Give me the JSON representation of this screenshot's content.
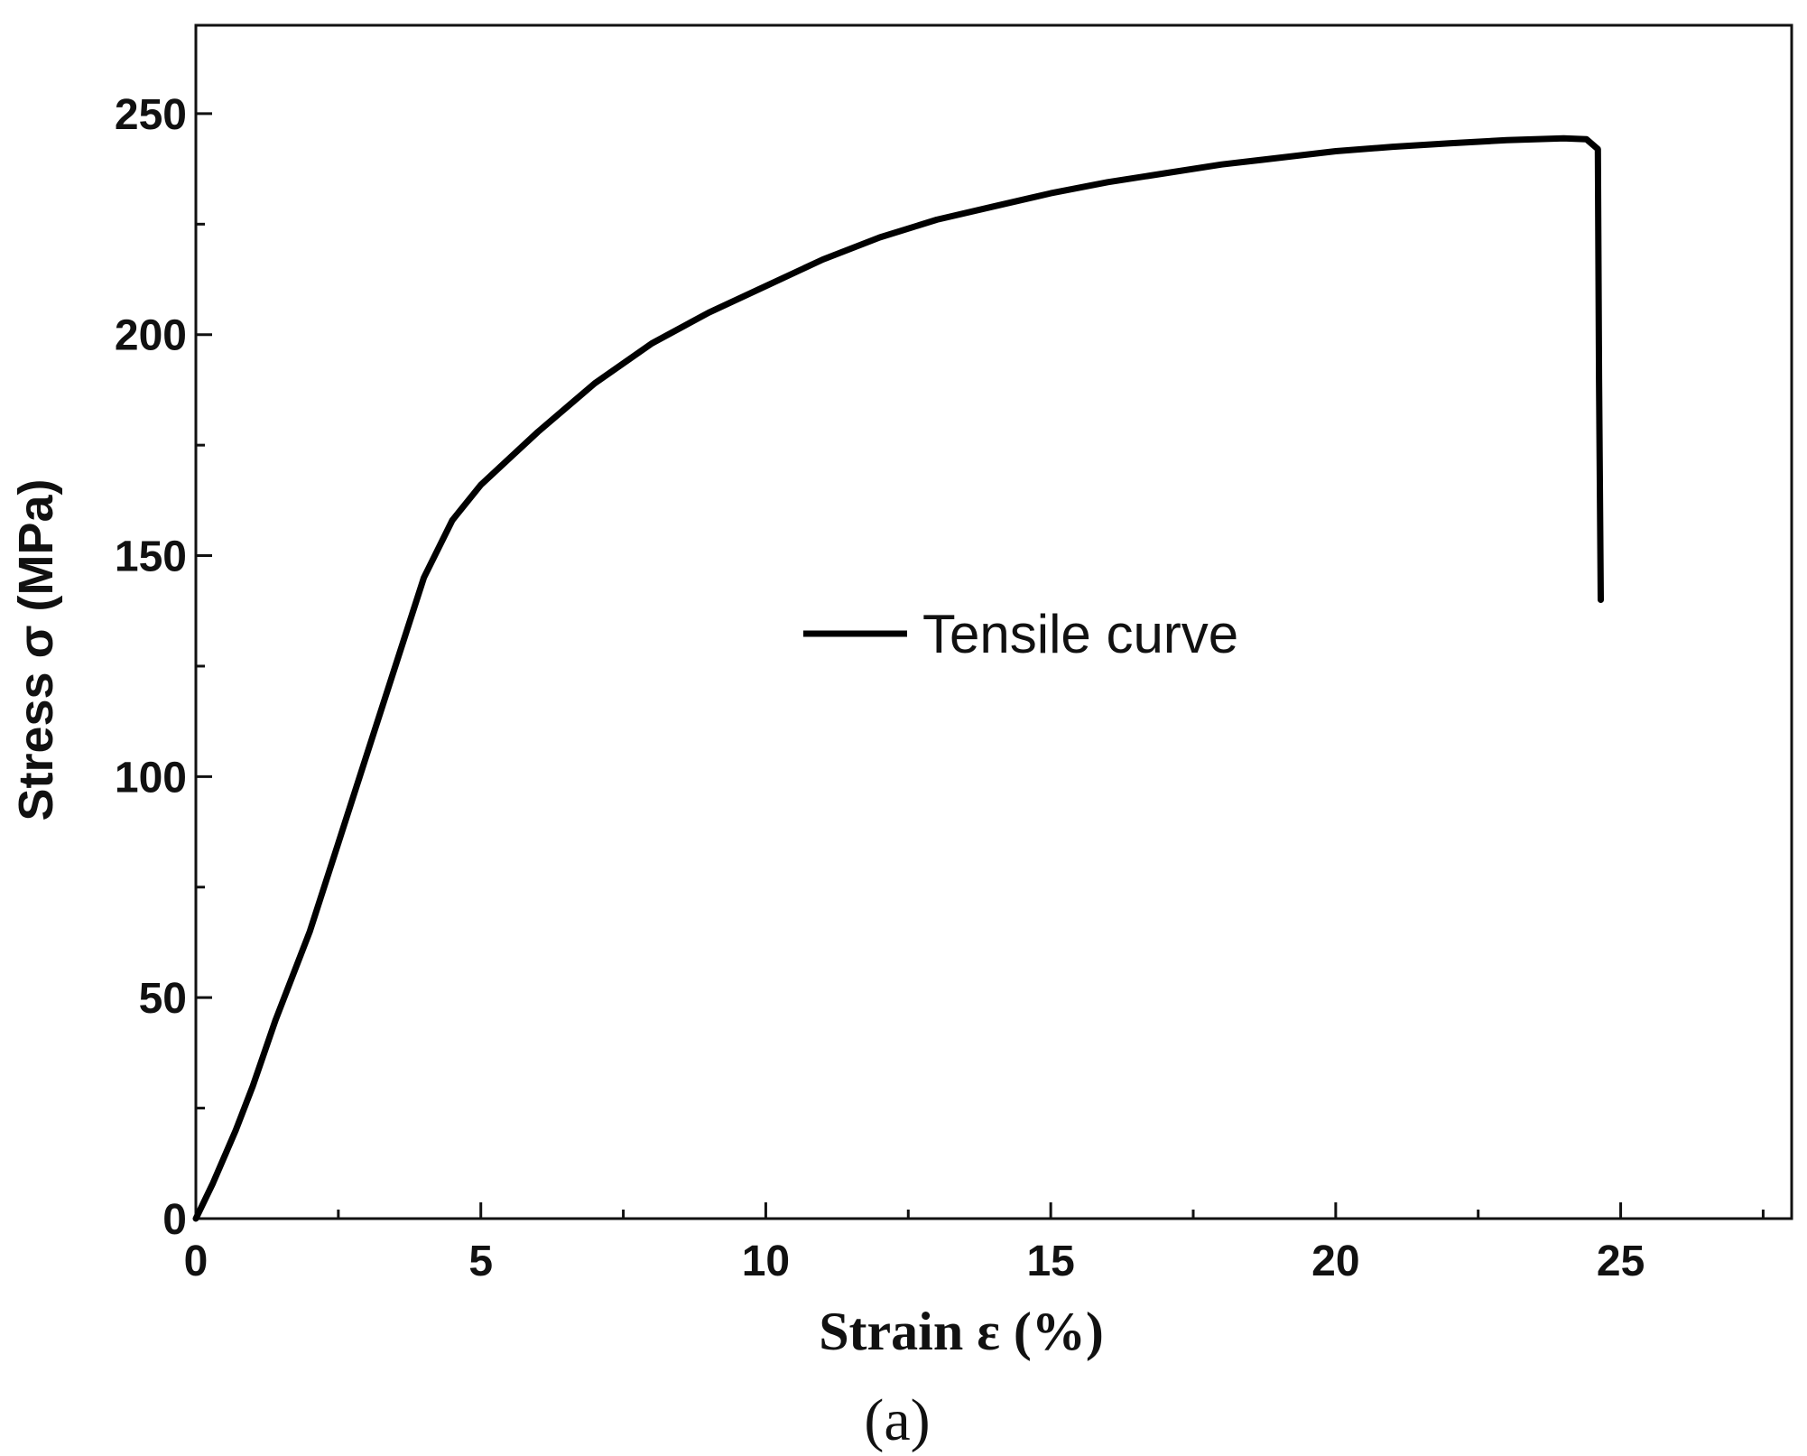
{
  "chart_data": {
    "type": "line",
    "xlabel": "Strain ε (%)",
    "ylabel": "Stress σ (MPa)",
    "panel_label": "(a)",
    "xlim": [
      0,
      28
    ],
    "ylim": [
      0,
      270
    ],
    "x_ticks": [
      "0",
      "5",
      "10",
      "15",
      "20",
      "25"
    ],
    "y_ticks": [
      "0",
      "50",
      "100",
      "150",
      "200",
      "250"
    ],
    "grid": false,
    "legend_position": "center",
    "series": [
      {
        "name": "Tensile curve",
        "color": "#000000",
        "x": [
          0,
          0.3,
          0.7,
          1.0,
          1.4,
          2.0,
          2.5,
          3.0,
          3.5,
          4.0,
          4.5,
          5.0,
          5.5,
          6.0,
          7.0,
          8.0,
          9.0,
          10.0,
          11.0,
          12.0,
          13.0,
          14.0,
          15.0,
          16.0,
          17.0,
          18.0,
          19.0,
          20.0,
          21.0,
          22.0,
          23.0,
          24.0,
          24.4,
          24.6,
          24.62,
          24.65
        ],
        "y": [
          0,
          8,
          20,
          30,
          45,
          65,
          85,
          105,
          125,
          145,
          158,
          166,
          172,
          178,
          189,
          198,
          205,
          211,
          217,
          222,
          226,
          229,
          232,
          234.5,
          236.5,
          238.5,
          240,
          241.5,
          242.5,
          243.3,
          244,
          244.4,
          244.2,
          242,
          190,
          140
        ]
      }
    ]
  }
}
